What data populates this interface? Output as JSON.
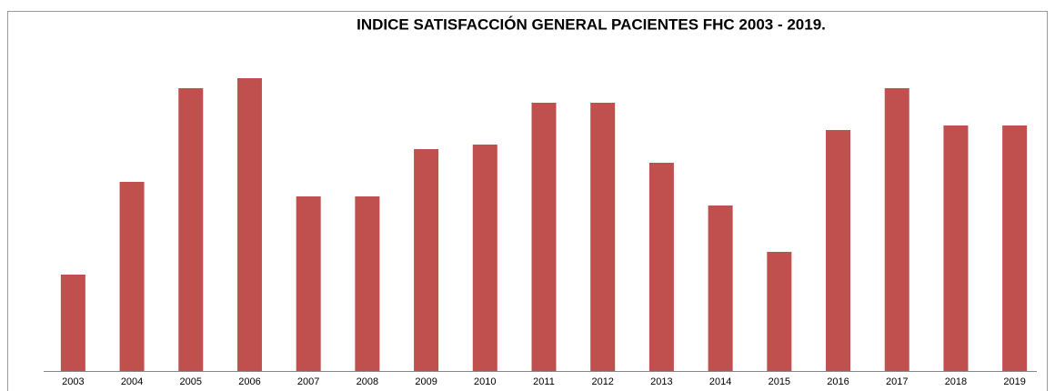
{
  "chart_data": {
    "type": "bar",
    "title": "INDICE SATISFACCIÓN GENERAL PACIENTES FHC 2003 - 2019.",
    "categories": [
      "2003",
      "2004",
      "2005",
      "2006",
      "2007",
      "2008",
      "2009",
      "2010",
      "2011",
      "2012",
      "2013",
      "2014",
      "2015",
      "2016",
      "2017",
      "2018",
      "2019"
    ],
    "values": [
      106,
      208,
      311,
      322,
      192,
      192,
      244,
      249,
      295,
      295,
      229,
      182,
      131,
      265,
      311,
      270,
      270
    ],
    "color": "#c0504d",
    "ylim": [
      0,
      350
    ]
  }
}
